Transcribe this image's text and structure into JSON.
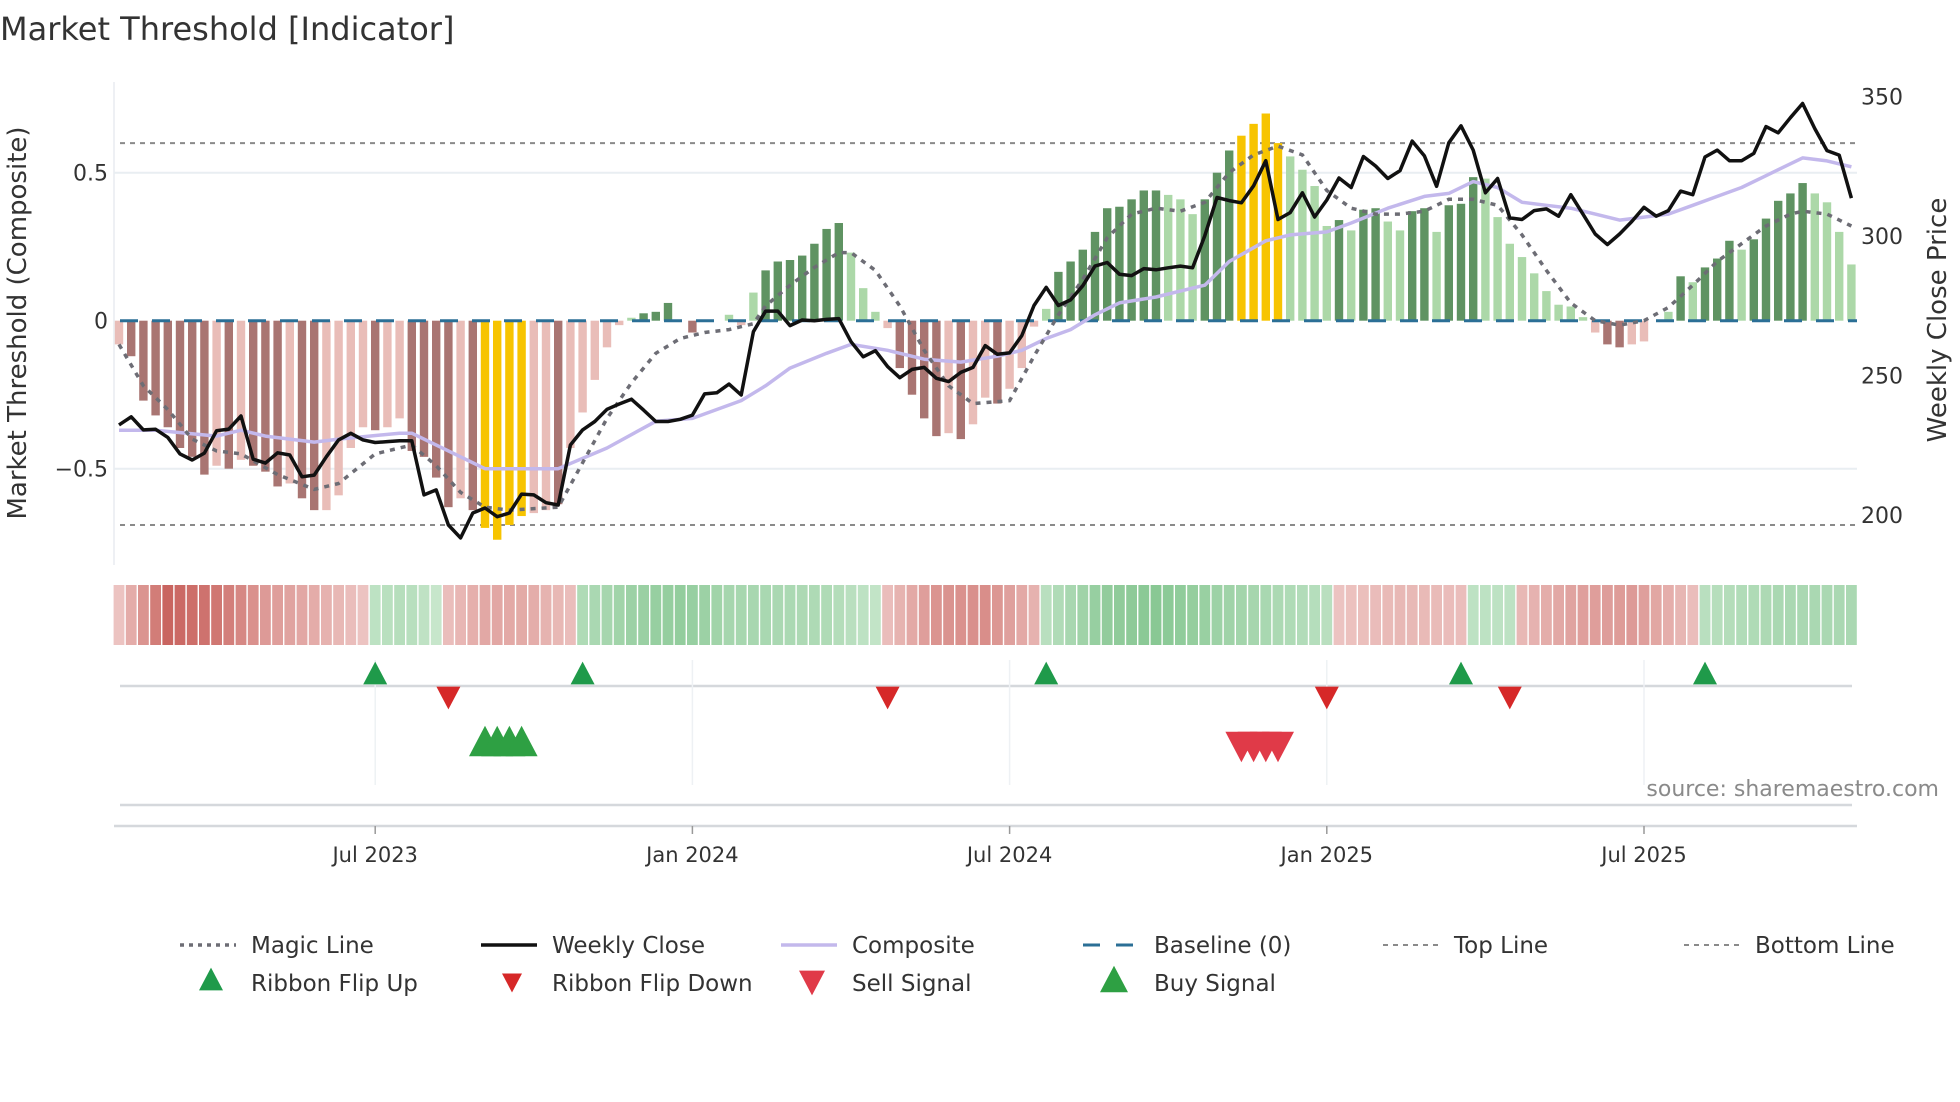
{
  "chart_data": {
    "type": "bar",
    "title": "Market Threshold [Indicator]",
    "ylabel_left": "Market Threshold (Composite)",
    "ylabel_right": "Weekly Close Price",
    "ylim_left": [
      -0.82,
      0.82
    ],
    "ylim_right": [
      185,
      355
    ],
    "yticks_left": [
      {
        "value": 0.5,
        "label": "0.5"
      },
      {
        "value": 0,
        "label": "0"
      },
      {
        "value": -0.5,
        "label": "−0.5"
      }
    ],
    "yticks_right": [
      {
        "value": 350,
        "label": "350"
      },
      {
        "value": 300,
        "label": "300"
      },
      {
        "value": 250,
        "label": "250"
      },
      {
        "value": 200,
        "label": "200"
      }
    ],
    "xticks": [
      {
        "week": 21,
        "label": "Jul 2023"
      },
      {
        "week": 47,
        "label": "Jan 2024"
      },
      {
        "week": 73,
        "label": "Jul 2024"
      },
      {
        "week": 99,
        "label": "Jan 2025"
      },
      {
        "week": 125,
        "label": "Jul 2025"
      }
    ],
    "weeks": 143,
    "top_line": 0.6,
    "bottom_line": -0.69,
    "baseline": 0,
    "bars": [
      -0.08,
      -0.12,
      -0.27,
      -0.32,
      -0.36,
      -0.43,
      -0.46,
      -0.52,
      -0.49,
      -0.5,
      -0.47,
      -0.49,
      -0.51,
      -0.56,
      -0.55,
      -0.6,
      -0.64,
      -0.64,
      -0.59,
      -0.43,
      -0.36,
      -0.37,
      -0.36,
      -0.33,
      -0.44,
      -0.46,
      -0.53,
      -0.63,
      -0.6,
      -0.64,
      -0.7,
      -0.74,
      -0.69,
      -0.66,
      -0.65,
      -0.64,
      -0.62,
      -0.43,
      -0.31,
      -0.2,
      -0.09,
      -0.015,
      0.01,
      0.025,
      0.03,
      0.06,
      0,
      -0.04,
      0,
      0,
      0.02,
      -0.015,
      0.095,
      0.17,
      0.2,
      0.205,
      0.22,
      0.26,
      0.31,
      0.33,
      0.23,
      0.11,
      0.03,
      -0.025,
      -0.16,
      -0.25,
      -0.33,
      -0.39,
      -0.38,
      -0.4,
      -0.35,
      -0.26,
      -0.28,
      -0.23,
      -0.16,
      -0.02,
      0.04,
      0.165,
      0.2,
      0.24,
      0.3,
      0.38,
      0.385,
      0.41,
      0.44,
      0.44,
      0.425,
      0.41,
      0.36,
      0.41,
      0.5,
      0.575,
      0.625,
      0.665,
      0.7,
      0.6,
      0.555,
      0.51,
      0.455,
      0.32,
      0.34,
      0.305,
      0.375,
      0.38,
      0.335,
      0.305,
      0.37,
      0.38,
      0.3,
      0.39,
      0.395,
      0.485,
      0.48,
      0.35,
      0.26,
      0.215,
      0.16,
      0.1,
      0.054,
      0.048,
      0.012,
      -0.04,
      -0.08,
      -0.09,
      -0.08,
      -0.07,
      0,
      0.03,
      0.15,
      0.13,
      0.18,
      0.21,
      0.27,
      0.24,
      0.275,
      0.345,
      0.405,
      0.43,
      0.465,
      0.43,
      0.4,
      0.3,
      0.19
    ],
    "bar_shades": "LDDDDDDDLDLDDDLDDLLLLDLLDDDDLDGGGGLLDLLLLLLDDDLDLLLLLDDDDDDDLLLLDDDDLDLLDLLLLDDDDDDDDDLLLDDDGGGGLLLLDLDDLLDDLDDDLLLLLLLLLLDDLLLLDLDDDLDDDDDLLLL",
    "weekly_close": [
      232.3,
      235.2,
      230.5,
      230.7,
      227.8,
      221.9,
      219.7,
      222.2,
      230.2,
      230.8,
      235.5,
      220,
      218.6,
      222.3,
      221.5,
      213.7,
      214.3,
      220.9,
      226.9,
      229.3,
      226.9,
      226,
      226.3,
      226.6,
      226.6,
      207.2,
      209,
      196.4,
      191.8,
      200.7,
      202.5,
      199.4,
      200.7,
      207.5,
      207.2,
      204.4,
      203.6,
      225.1,
      230.5,
      233.5,
      237.9,
      239.8,
      241.5,
      237.6,
      233.5,
      233.5,
      234.3,
      235.8,
      243.4,
      243.8,
      246.9,
      243,
      265.7,
      273.1,
      273.1,
      267.9,
      269.9,
      269.6,
      270.1,
      270.4,
      262.1,
      256.7,
      258.9,
      253.2,
      249.2,
      252.2,
      252.9,
      249,
      247.8,
      251.1,
      252.9,
      260.7,
      257.6,
      258.1,
      264.3,
      275.1,
      281.6,
      275.1,
      277.1,
      282.2,
      289.2,
      290.5,
      286.3,
      285.8,
      288.3,
      287.9,
      288.6,
      289.2,
      288.6,
      300.1,
      313.8,
      312.7,
      311.9,
      318,
      327,
      305.9,
      308.4,
      315.5,
      306.8,
      312.9,
      320.8,
      317.4,
      328.5,
      325.1,
      320.6,
      323.4,
      334,
      328.7,
      317.8,
      333.4,
      339.5,
      330.8,
      315.5,
      320.6,
      306.5,
      305.9,
      309.1,
      309.7,
      307.1,
      314.8,
      307.8,
      300.7,
      296.9,
      300.7,
      305.2,
      310.3,
      307.1,
      309.1,
      316.1,
      314.8,
      328.3,
      330.8,
      327,
      327,
      329.6,
      339.2,
      337,
      342.4,
      347.5,
      338.5,
      330.6,
      329,
      313.6
    ],
    "composite": [
      [
        0,
        -0.37
      ],
      [
        3,
        -0.37
      ],
      [
        8,
        -0.39
      ],
      [
        10,
        -0.37
      ],
      [
        12,
        -0.39
      ],
      [
        16,
        -0.41
      ],
      [
        18,
        -0.4
      ],
      [
        23,
        -0.38
      ],
      [
        24,
        -0.38
      ],
      [
        27,
        -0.44
      ],
      [
        30,
        -0.5
      ],
      [
        33,
        -0.5
      ],
      [
        36,
        -0.5
      ],
      [
        40,
        -0.43
      ],
      [
        44,
        -0.34
      ],
      [
        47,
        -0.33
      ],
      [
        51,
        -0.27
      ],
      [
        53,
        -0.22
      ],
      [
        55,
        -0.16
      ],
      [
        58,
        -0.11
      ],
      [
        60,
        -0.08
      ],
      [
        63,
        -0.1
      ],
      [
        66,
        -0.13
      ],
      [
        69,
        -0.14
      ],
      [
        72,
        -0.12
      ],
      [
        74,
        -0.1
      ],
      [
        76,
        -0.06
      ],
      [
        78,
        -0.03
      ],
      [
        80,
        0.02
      ],
      [
        82,
        0.06
      ],
      [
        85,
        0.08
      ],
      [
        88,
        0.11
      ],
      [
        89,
        0.12
      ],
      [
        91,
        0.2
      ],
      [
        94,
        0.27
      ],
      [
        96,
        0.29
      ],
      [
        99,
        0.3
      ],
      [
        101,
        0.33
      ],
      [
        104,
        0.38
      ],
      [
        107,
        0.42
      ],
      [
        109,
        0.43
      ],
      [
        111,
        0.47
      ],
      [
        113,
        0.45
      ],
      [
        115,
        0.4
      ],
      [
        117,
        0.39
      ],
      [
        119,
        0.38
      ],
      [
        121,
        0.36
      ],
      [
        123,
        0.34
      ],
      [
        125,
        0.35
      ],
      [
        127,
        0.36
      ],
      [
        129,
        0.39
      ],
      [
        131,
        0.42
      ],
      [
        133,
        0.45
      ],
      [
        135,
        0.49
      ],
      [
        137,
        0.53
      ],
      [
        138,
        0.55
      ],
      [
        140,
        0.54
      ],
      [
        142,
        0.52
      ]
    ],
    "magic_line": [
      [
        0,
        -0.08
      ],
      [
        2,
        -0.22
      ],
      [
        4,
        -0.3
      ],
      [
        6,
        -0.4
      ],
      [
        8,
        -0.44
      ],
      [
        10,
        -0.45
      ],
      [
        13,
        -0.52
      ],
      [
        16,
        -0.57
      ],
      [
        18,
        -0.55
      ],
      [
        21,
        -0.45
      ],
      [
        24,
        -0.42
      ],
      [
        26,
        -0.49
      ],
      [
        28,
        -0.58
      ],
      [
        30,
        -0.63
      ],
      [
        32,
        -0.64
      ],
      [
        36,
        -0.63
      ],
      [
        38,
        -0.48
      ],
      [
        40,
        -0.33
      ],
      [
        42,
        -0.21
      ],
      [
        44,
        -0.11
      ],
      [
        46,
        -0.06
      ],
      [
        48,
        -0.04
      ],
      [
        50,
        -0.03
      ],
      [
        52,
        -0.01
      ],
      [
        53,
        0.05
      ],
      [
        55,
        0.12
      ],
      [
        57,
        0.18
      ],
      [
        59,
        0.23
      ],
      [
        60,
        0.23
      ],
      [
        62,
        0.17
      ],
      [
        64,
        0.05
      ],
      [
        66,
        -0.1
      ],
      [
        68,
        -0.22
      ],
      [
        70,
        -0.28
      ],
      [
        73,
        -0.27
      ],
      [
        75,
        -0.12
      ],
      [
        77,
        0.02
      ],
      [
        79,
        0.14
      ],
      [
        81,
        0.28
      ],
      [
        83,
        0.36
      ],
      [
        85,
        0.38
      ],
      [
        87,
        0.37
      ],
      [
        89,
        0.4
      ],
      [
        91,
        0.5
      ],
      [
        93,
        0.56
      ],
      [
        95,
        0.59
      ],
      [
        97,
        0.56
      ],
      [
        99,
        0.44
      ],
      [
        101,
        0.38
      ],
      [
        103,
        0.36
      ],
      [
        105,
        0.36
      ],
      [
        107,
        0.37
      ],
      [
        109,
        0.41
      ],
      [
        111,
        0.41
      ],
      [
        113,
        0.39
      ],
      [
        115,
        0.29
      ],
      [
        117,
        0.17
      ],
      [
        119,
        0.06
      ],
      [
        121,
        0.0
      ],
      [
        123,
        -0.015
      ],
      [
        125,
        0.0
      ],
      [
        127,
        0.045
      ],
      [
        129,
        0.12
      ],
      [
        131,
        0.2
      ],
      [
        133,
        0.26
      ],
      [
        135,
        0.32
      ],
      [
        137,
        0.36
      ],
      [
        138,
        0.37
      ],
      [
        140,
        0.36
      ],
      [
        142,
        0.32
      ]
    ],
    "ribbon": [
      {
        "start": 0,
        "end": 20,
        "trend": "down",
        "levels": [
          0.15,
          0.95,
          0.8,
          0.5,
          0.35,
          0.15
        ]
      },
      {
        "start": 21,
        "end": 26,
        "trend": "up",
        "levels": [
          0.25,
          0.35,
          0.15
        ]
      },
      {
        "start": 27,
        "end": 37,
        "trend": "down",
        "levels": [
          0.2,
          0.4,
          0.35,
          0.2
        ]
      },
      {
        "start": 38,
        "end": 62,
        "trend": "up",
        "levels": [
          0.4,
          0.6,
          0.7,
          0.5,
          0.45,
          0.4,
          0.2
        ]
      },
      {
        "start": 63,
        "end": 75,
        "trend": "down",
        "levels": [
          0.2,
          0.55,
          0.6,
          0.3
        ]
      },
      {
        "start": 76,
        "end": 99,
        "trend": "up",
        "levels": [
          0.3,
          0.7,
          0.8,
          0.6,
          0.45,
          0.3
        ]
      },
      {
        "start": 100,
        "end": 110,
        "trend": "down",
        "levels": [
          0.15,
          0.25,
          0.2
        ]
      },
      {
        "start": 111,
        "end": 114,
        "trend": "up",
        "levels": [
          0.25,
          0.25
        ]
      },
      {
        "start": 115,
        "end": 129,
        "trend": "down",
        "levels": [
          0.25,
          0.45,
          0.5,
          0.2
        ]
      },
      {
        "start": 130,
        "end": 142,
        "trend": "up",
        "levels": [
          0.3,
          0.45,
          0.45
        ]
      }
    ],
    "ribbon_flip_up": [
      21,
      38,
      76,
      110,
      130
    ],
    "ribbon_flip_down": [
      27,
      63,
      99,
      114
    ],
    "buy_signals": [
      30,
      31,
      32,
      33
    ],
    "sell_signals": [
      92,
      93,
      94,
      95
    ],
    "legend": {
      "placement": "bottom",
      "items": [
        {
          "key": "magic",
          "label": "Magic Line"
        },
        {
          "key": "close",
          "label": "Weekly Close"
        },
        {
          "key": "composite",
          "label": "Composite"
        },
        {
          "key": "baseline",
          "label": "Baseline (0)"
        },
        {
          "key": "top",
          "label": "Top Line"
        },
        {
          "key": "bottom",
          "label": "Bottom Line"
        },
        {
          "key": "flipup",
          "label": "Ribbon Flip Up"
        },
        {
          "key": "flipdown",
          "label": "Ribbon Flip Down"
        },
        {
          "key": "sell",
          "label": "Sell Signal"
        },
        {
          "key": "buy",
          "label": "Buy Signal"
        }
      ]
    },
    "source": "source: sharemaestro.com"
  },
  "colors": {
    "bar_dark_red": "#a97572",
    "bar_light_red": "#e9bdb8",
    "bar_dark_green": "#5f9362",
    "bar_light_green": "#acd8a8",
    "bar_gold": "#f7c400",
    "close": "#111111",
    "composite": "#c3b8ec",
    "magic": "#6d6d75",
    "baseline": "#2b6f96",
    "threshold": "#8a8a8a",
    "flip_up": "#1f9a4a",
    "flip_down": "#d62828",
    "buy": "#2ea043",
    "sell": "#e03a48"
  }
}
